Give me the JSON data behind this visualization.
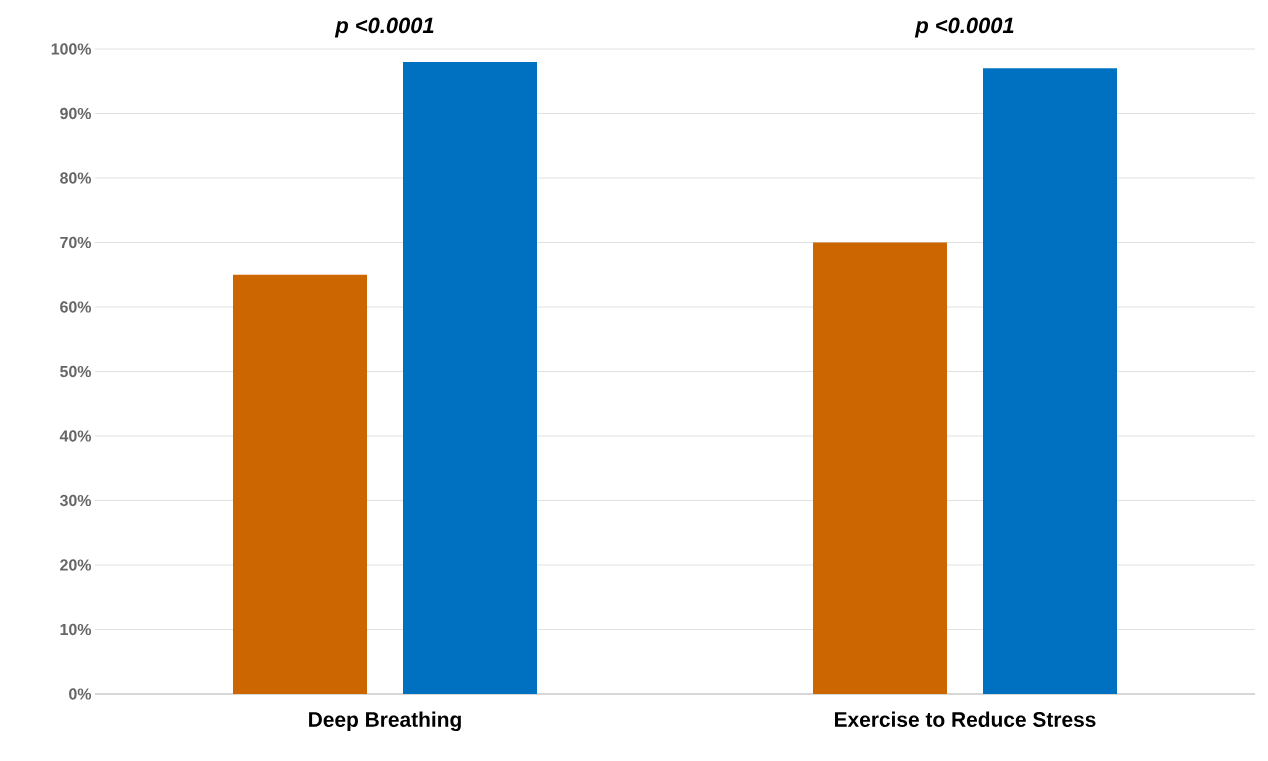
{
  "chart_data": {
    "type": "bar",
    "categories": [
      "Deep Breathing",
      "Exercise to Reduce Stress"
    ],
    "series": [
      {
        "color": "#cc6600",
        "values": [
          65,
          70
        ]
      },
      {
        "color": "#0070c0",
        "values": [
          98,
          97
        ]
      }
    ],
    "ylim": [
      0,
      100
    ],
    "yticks": [
      {
        "value": 0,
        "label": "0%"
      },
      {
        "value": 10,
        "label": "10%"
      },
      {
        "value": 20,
        "label": "20%"
      },
      {
        "value": 30,
        "label": "30%"
      },
      {
        "value": 40,
        "label": "40%"
      },
      {
        "value": 50,
        "label": "50%"
      },
      {
        "value": 60,
        "label": "60%"
      },
      {
        "value": 70,
        "label": "70%"
      },
      {
        "value": 80,
        "label": "80%"
      },
      {
        "value": 90,
        "label": "90%"
      },
      {
        "value": 100,
        "label": "100%"
      }
    ],
    "grid": "y",
    "annotations": [
      "p <0.0001",
      "p <0.0001"
    ]
  }
}
